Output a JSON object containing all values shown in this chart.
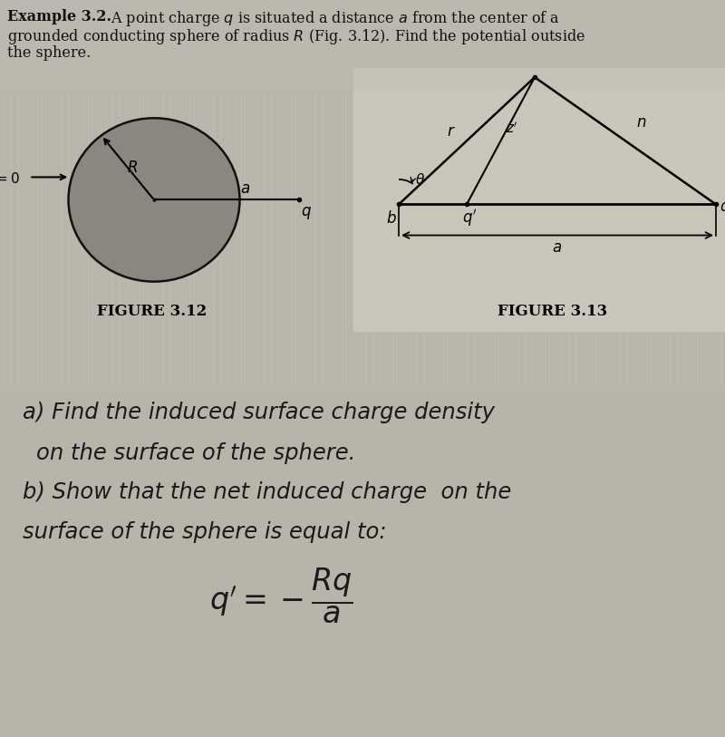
{
  "bg_top": "#b8b4aa",
  "bg_bottom": "#e0ddd6",
  "stripe_color": "#c5c1b8",
  "text_color": "#111111",
  "title_bold": "Example 3.2.",
  "title_rest": "  A point charge ",
  "fig312_caption": "FIGURE 3.12",
  "fig313_caption": "FIGURE 3.13",
  "sphere_color": "#888880",
  "sphere_edge": "#222222",
  "line_color": "#111111"
}
